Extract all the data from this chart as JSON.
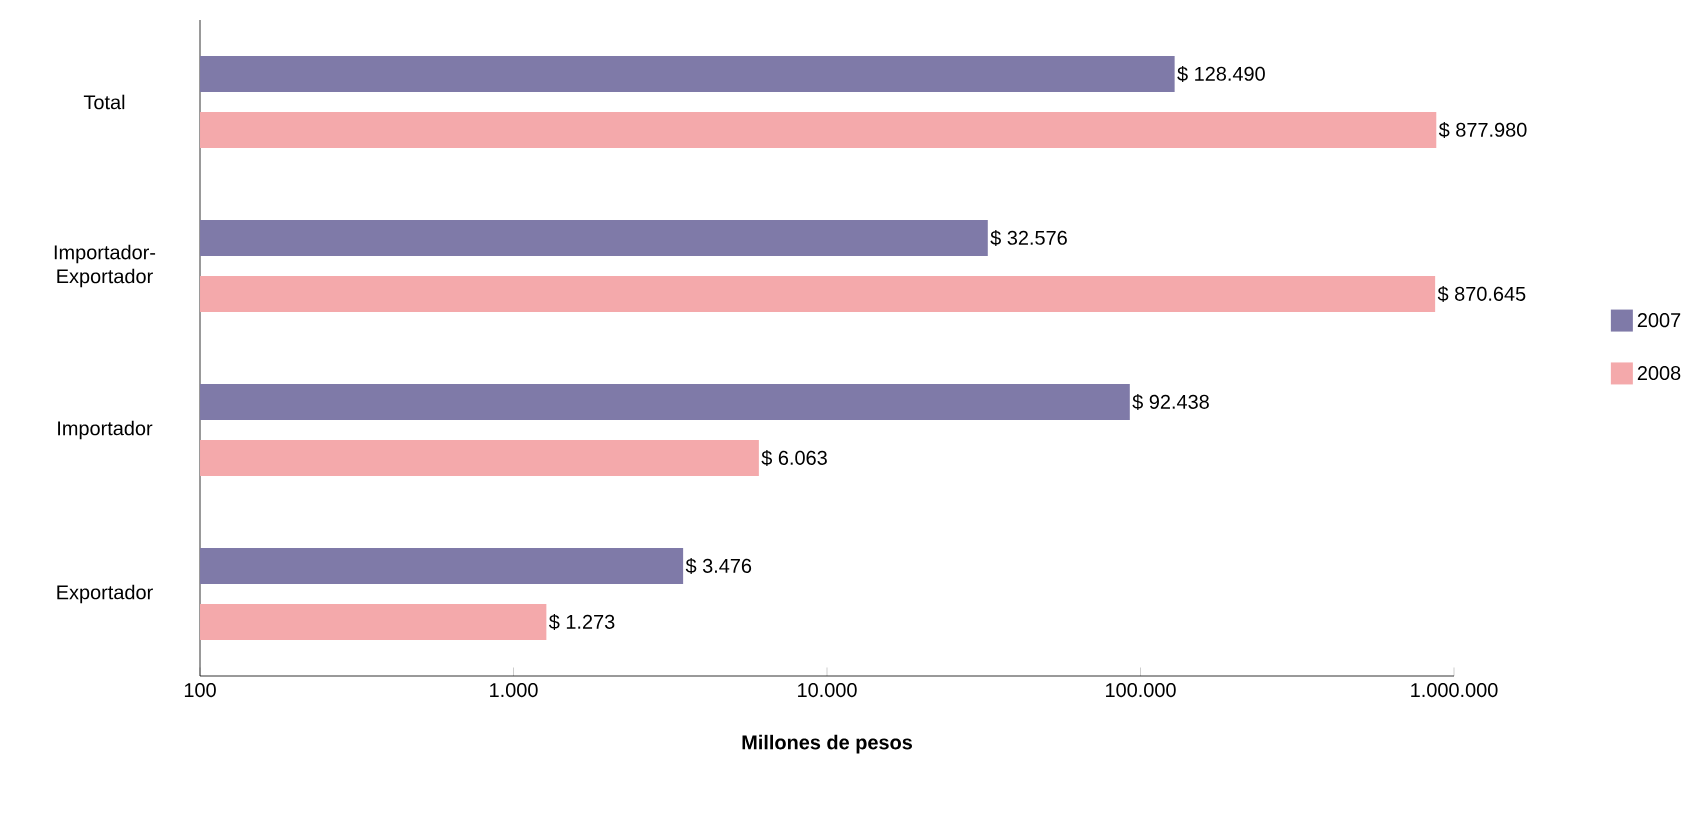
{
  "chart_data": {
    "type": "bar",
    "orientation": "horizontal",
    "log": "x",
    "xlabel": "Millones de pesos",
    "categories": [
      "Total",
      "Importador-Exportador",
      "Importador",
      "Exportador"
    ],
    "series": [
      {
        "name": "2007",
        "color": "#7f7aa8",
        "values": [
          128490,
          32576,
          92438,
          3476
        ],
        "value_labels": [
          "$ 128.490",
          "$ 32.576",
          "$ 92.438",
          "$ 3.476"
        ]
      },
      {
        "name": "2008",
        "color": "#f4a9ab",
        "values": [
          877980,
          870645,
          6063,
          1273
        ],
        "value_labels": [
          "$ 877.980",
          "$ 870.645",
          "$ 6.063",
          "$ 1.273"
        ]
      }
    ],
    "xlim": [
      100,
      1000000
    ],
    "xticks": [
      {
        "value": 100,
        "label": "100"
      },
      {
        "value": 1000,
        "label": "1.000"
      },
      {
        "value": 10000,
        "label": "10.000"
      },
      {
        "value": 100000,
        "label": "100.000"
      },
      {
        "value": 1000000,
        "label": "1.000.000"
      }
    ],
    "legend": "right",
    "grid": false
  }
}
